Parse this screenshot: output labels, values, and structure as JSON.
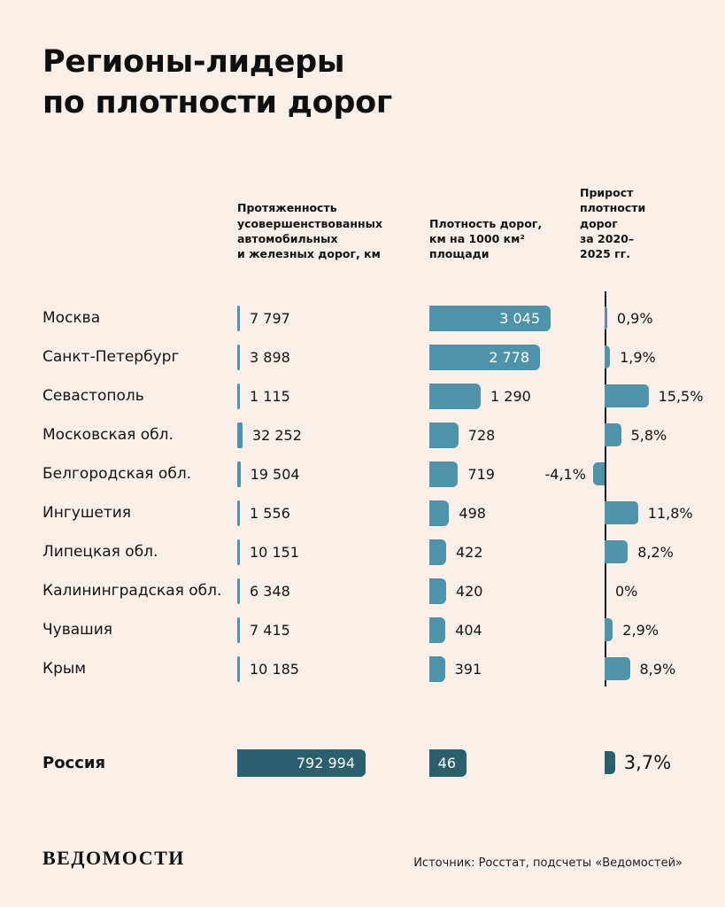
{
  "title": {
    "line1": "Регионы-лидеры",
    "line2": "по плотности дорог"
  },
  "chart_data": {
    "type": "bar",
    "title": "Регионы-лидеры по плотности дорог",
    "columns": [
      {
        "key": "length",
        "label": "Протяженность\nусовершенствованных\nавтомобильных\nи железных дорог, км"
      },
      {
        "key": "density",
        "label": "Плотность дорог,\nкм на 1000 км²\nплощади"
      },
      {
        "key": "growth",
        "label": "Прирост\nплотности\nдорог\nза 2020–2025 гг."
      }
    ],
    "rows": [
      {
        "region": "Москва",
        "length": 7797,
        "length_display": "7 797",
        "density": 3045,
        "density_display": "3 045",
        "growth": 0.9,
        "growth_display": "0,9%"
      },
      {
        "region": "Санкт-Петербург",
        "length": 3898,
        "length_display": "3 898",
        "density": 2778,
        "density_display": "2 778",
        "growth": 1.9,
        "growth_display": "1,9%"
      },
      {
        "region": "Севастополь",
        "length": 1115,
        "length_display": "1 115",
        "density": 1290,
        "density_display": "1 290",
        "growth": 15.5,
        "growth_display": "15,5%"
      },
      {
        "region": "Московская обл.",
        "length": 32252,
        "length_display": "32 252",
        "density": 728,
        "density_display": "728",
        "growth": 5.8,
        "growth_display": "5,8%"
      },
      {
        "region": "Белгородская обл.",
        "length": 19504,
        "length_display": "19 504",
        "density": 719,
        "density_display": "719",
        "growth": -4.1,
        "growth_display": "-4,1%"
      },
      {
        "region": "Ингушетия",
        "length": 1556,
        "length_display": "1 556",
        "density": 498,
        "density_display": "498",
        "growth": 11.8,
        "growth_display": "11,8%"
      },
      {
        "region": "Липецкая обл.",
        "length": 10151,
        "length_display": "10 151",
        "density": 422,
        "density_display": "422",
        "growth": 8.2,
        "growth_display": "8,2%"
      },
      {
        "region": "Калининградская обл.",
        "length": 6348,
        "length_display": "6 348",
        "density": 420,
        "density_display": "420",
        "growth": 0,
        "growth_display": "0%"
      },
      {
        "region": "Чувашия",
        "length": 7415,
        "length_display": "7 415",
        "density": 404,
        "density_display": "404",
        "growth": 2.9,
        "growth_display": "2,9%"
      },
      {
        "region": "Крым",
        "length": 10185,
        "length_display": "10 185",
        "density": 391,
        "density_display": "391",
        "growth": 8.9,
        "growth_display": "8,9%"
      }
    ],
    "total": {
      "region": "Россия",
      "length": 792994,
      "length_display": "792 994",
      "density": 46,
      "density_display": "46",
      "growth": 3.7,
      "growth_display": "3,7%"
    },
    "colors": {
      "bar": "#4f93a9",
      "bar_dark": "#2c5f6d",
      "background": "#f8efe9"
    },
    "layout": {
      "axis": "vertical zero line in growth column",
      "grid": "off",
      "legend": "none"
    }
  },
  "footer": {
    "logo": "ВЕДОМОСТИ",
    "source": "Источник: Росстат, подсчеты «Ведомостей»"
  }
}
